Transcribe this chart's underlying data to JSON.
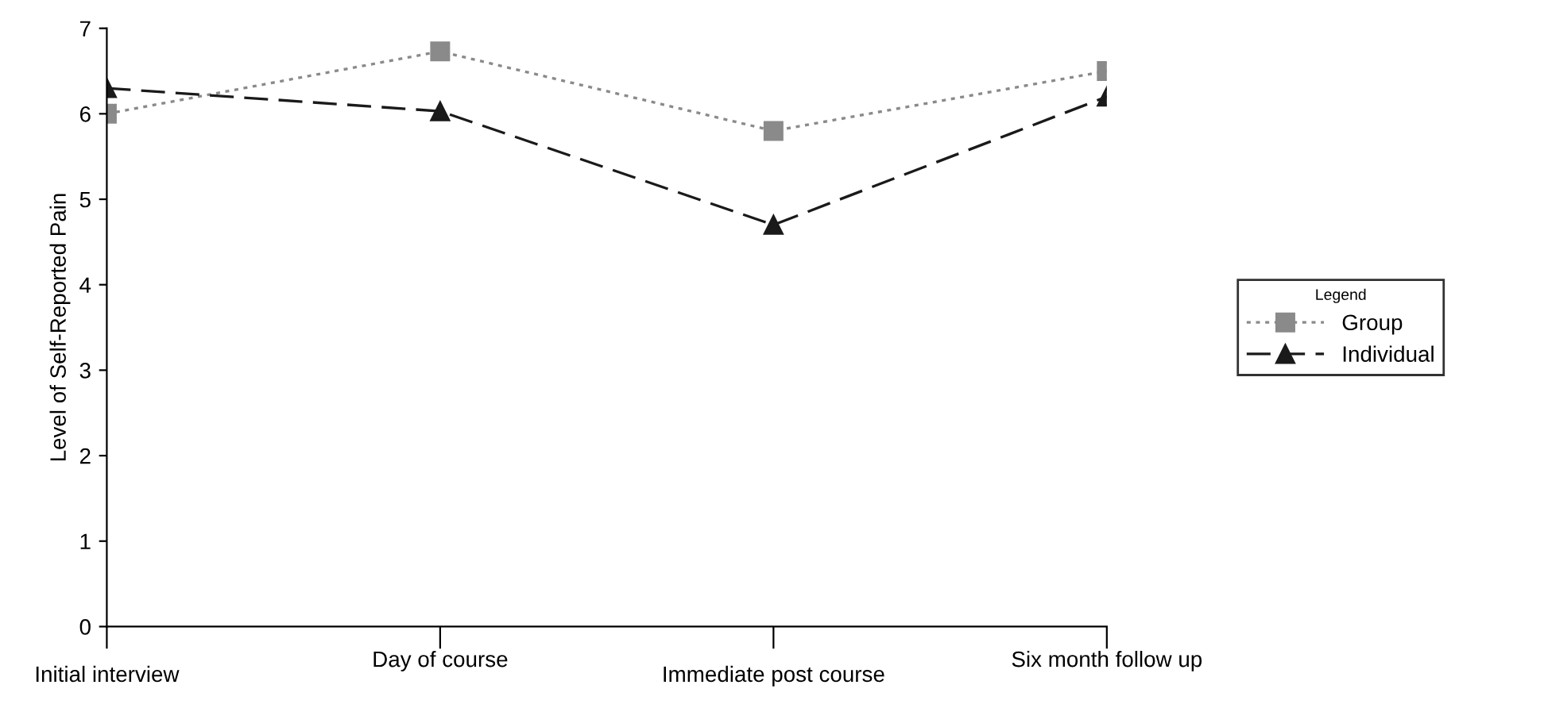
{
  "chart_data": {
    "type": "line",
    "ylabel": "Level of Self-Reported Pain",
    "categories": [
      "Initial interview",
      "Day of course",
      "Immediate post course",
      "Six month follow up"
    ],
    "series": [
      {
        "name": "Group",
        "color": "#8a8a8a",
        "values": [
          6.0,
          6.73,
          5.8,
          6.5
        ],
        "marker": "square",
        "line_style": "dotted"
      },
      {
        "name": "Individual",
        "color": "#1a1a1a",
        "values": [
          6.3,
          6.03,
          4.7,
          6.2
        ],
        "marker": "triangle",
        "line_style": "dashed"
      }
    ],
    "ylim": [
      0,
      7
    ],
    "yticks": [
      0,
      1,
      2,
      3,
      4,
      5,
      6,
      7
    ],
    "grid": false,
    "legend": "right",
    "legend_title": "Legend"
  }
}
